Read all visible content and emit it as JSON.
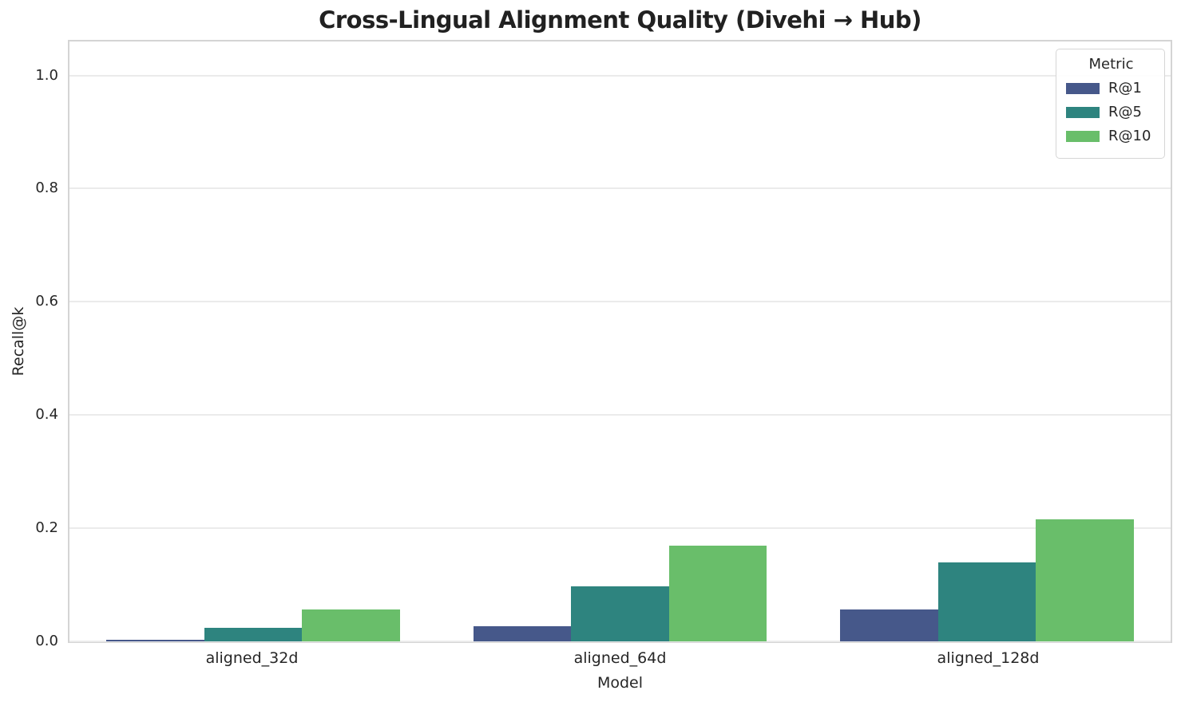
{
  "chart_data": {
    "type": "bar",
    "title": "Cross-Lingual Alignment Quality (Divehi → Hub)",
    "xlabel": "Model",
    "ylabel": "Recall@k",
    "categories": [
      "aligned_32d",
      "aligned_64d",
      "aligned_128d"
    ],
    "series": [
      {
        "name": "R@1",
        "color": "#46588a",
        "values": [
          0.003,
          0.027,
          0.057
        ]
      },
      {
        "name": "R@5",
        "color": "#2e847f",
        "values": [
          0.024,
          0.097,
          0.14
        ]
      },
      {
        "name": "R@10",
        "color": "#69be6a",
        "values": [
          0.056,
          0.169,
          0.215
        ]
      }
    ],
    "ylim": [
      0,
      1.06
    ],
    "y_ticks": [
      0.0,
      0.2,
      0.4,
      0.6,
      0.8,
      1.0
    ],
    "y_tick_labels": [
      "0.0",
      "0.2",
      "0.4",
      "0.6",
      "0.8",
      "1.0"
    ],
    "grid": true,
    "legend_title": "Metric",
    "legend_position": "upper right",
    "bar_group_width_fraction": 0.8
  },
  "style_colors": {
    "grid": "#ebebeb",
    "spine": "#d4d4d4",
    "text": "#262626",
    "background": "#ffffff"
  }
}
